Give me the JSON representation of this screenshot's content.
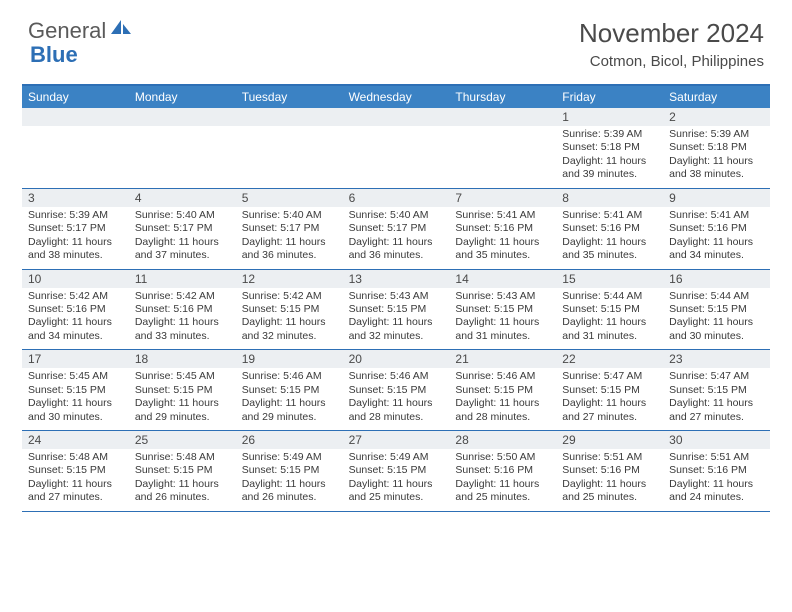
{
  "branding": {
    "word1": "General",
    "word2": "Blue",
    "word1_color": "#5a5a5a",
    "word2_color": "#2d6fb5",
    "icon_fill": "#2d6fb5"
  },
  "title": "November 2024",
  "location": "Cotmon, Bicol, Philippines",
  "colors": {
    "header_bg": "#3b82c4",
    "header_text": "#ffffff",
    "band_bg": "#eceff2",
    "row_border": "#2d6fb5",
    "text": "#333333"
  },
  "weekdays": [
    "Sunday",
    "Monday",
    "Tuesday",
    "Wednesday",
    "Thursday",
    "Friday",
    "Saturday"
  ],
  "weeks": [
    {
      "nums": [
        "",
        "",
        "",
        "",
        "",
        "1",
        "2"
      ],
      "cells": [
        null,
        null,
        null,
        null,
        null,
        {
          "sunrise": "Sunrise: 5:39 AM",
          "sunset": "Sunset: 5:18 PM",
          "daylight": "Daylight: 11 hours and 39 minutes."
        },
        {
          "sunrise": "Sunrise: 5:39 AM",
          "sunset": "Sunset: 5:18 PM",
          "daylight": "Daylight: 11 hours and 38 minutes."
        }
      ]
    },
    {
      "nums": [
        "3",
        "4",
        "5",
        "6",
        "7",
        "8",
        "9"
      ],
      "cells": [
        {
          "sunrise": "Sunrise: 5:39 AM",
          "sunset": "Sunset: 5:17 PM",
          "daylight": "Daylight: 11 hours and 38 minutes."
        },
        {
          "sunrise": "Sunrise: 5:40 AM",
          "sunset": "Sunset: 5:17 PM",
          "daylight": "Daylight: 11 hours and 37 minutes."
        },
        {
          "sunrise": "Sunrise: 5:40 AM",
          "sunset": "Sunset: 5:17 PM",
          "daylight": "Daylight: 11 hours and 36 minutes."
        },
        {
          "sunrise": "Sunrise: 5:40 AM",
          "sunset": "Sunset: 5:17 PM",
          "daylight": "Daylight: 11 hours and 36 minutes."
        },
        {
          "sunrise": "Sunrise: 5:41 AM",
          "sunset": "Sunset: 5:16 PM",
          "daylight": "Daylight: 11 hours and 35 minutes."
        },
        {
          "sunrise": "Sunrise: 5:41 AM",
          "sunset": "Sunset: 5:16 PM",
          "daylight": "Daylight: 11 hours and 35 minutes."
        },
        {
          "sunrise": "Sunrise: 5:41 AM",
          "sunset": "Sunset: 5:16 PM",
          "daylight": "Daylight: 11 hours and 34 minutes."
        }
      ]
    },
    {
      "nums": [
        "10",
        "11",
        "12",
        "13",
        "14",
        "15",
        "16"
      ],
      "cells": [
        {
          "sunrise": "Sunrise: 5:42 AM",
          "sunset": "Sunset: 5:16 PM",
          "daylight": "Daylight: 11 hours and 34 minutes."
        },
        {
          "sunrise": "Sunrise: 5:42 AM",
          "sunset": "Sunset: 5:16 PM",
          "daylight": "Daylight: 11 hours and 33 minutes."
        },
        {
          "sunrise": "Sunrise: 5:42 AM",
          "sunset": "Sunset: 5:15 PM",
          "daylight": "Daylight: 11 hours and 32 minutes."
        },
        {
          "sunrise": "Sunrise: 5:43 AM",
          "sunset": "Sunset: 5:15 PM",
          "daylight": "Daylight: 11 hours and 32 minutes."
        },
        {
          "sunrise": "Sunrise: 5:43 AM",
          "sunset": "Sunset: 5:15 PM",
          "daylight": "Daylight: 11 hours and 31 minutes."
        },
        {
          "sunrise": "Sunrise: 5:44 AM",
          "sunset": "Sunset: 5:15 PM",
          "daylight": "Daylight: 11 hours and 31 minutes."
        },
        {
          "sunrise": "Sunrise: 5:44 AM",
          "sunset": "Sunset: 5:15 PM",
          "daylight": "Daylight: 11 hours and 30 minutes."
        }
      ]
    },
    {
      "nums": [
        "17",
        "18",
        "19",
        "20",
        "21",
        "22",
        "23"
      ],
      "cells": [
        {
          "sunrise": "Sunrise: 5:45 AM",
          "sunset": "Sunset: 5:15 PM",
          "daylight": "Daylight: 11 hours and 30 minutes."
        },
        {
          "sunrise": "Sunrise: 5:45 AM",
          "sunset": "Sunset: 5:15 PM",
          "daylight": "Daylight: 11 hours and 29 minutes."
        },
        {
          "sunrise": "Sunrise: 5:46 AM",
          "sunset": "Sunset: 5:15 PM",
          "daylight": "Daylight: 11 hours and 29 minutes."
        },
        {
          "sunrise": "Sunrise: 5:46 AM",
          "sunset": "Sunset: 5:15 PM",
          "daylight": "Daylight: 11 hours and 28 minutes."
        },
        {
          "sunrise": "Sunrise: 5:46 AM",
          "sunset": "Sunset: 5:15 PM",
          "daylight": "Daylight: 11 hours and 28 minutes."
        },
        {
          "sunrise": "Sunrise: 5:47 AM",
          "sunset": "Sunset: 5:15 PM",
          "daylight": "Daylight: 11 hours and 27 minutes."
        },
        {
          "sunrise": "Sunrise: 5:47 AM",
          "sunset": "Sunset: 5:15 PM",
          "daylight": "Daylight: 11 hours and 27 minutes."
        }
      ]
    },
    {
      "nums": [
        "24",
        "25",
        "26",
        "27",
        "28",
        "29",
        "30"
      ],
      "cells": [
        {
          "sunrise": "Sunrise: 5:48 AM",
          "sunset": "Sunset: 5:15 PM",
          "daylight": "Daylight: 11 hours and 27 minutes."
        },
        {
          "sunrise": "Sunrise: 5:48 AM",
          "sunset": "Sunset: 5:15 PM",
          "daylight": "Daylight: 11 hours and 26 minutes."
        },
        {
          "sunrise": "Sunrise: 5:49 AM",
          "sunset": "Sunset: 5:15 PM",
          "daylight": "Daylight: 11 hours and 26 minutes."
        },
        {
          "sunrise": "Sunrise: 5:49 AM",
          "sunset": "Sunset: 5:15 PM",
          "daylight": "Daylight: 11 hours and 25 minutes."
        },
        {
          "sunrise": "Sunrise: 5:50 AM",
          "sunset": "Sunset: 5:16 PM",
          "daylight": "Daylight: 11 hours and 25 minutes."
        },
        {
          "sunrise": "Sunrise: 5:51 AM",
          "sunset": "Sunset: 5:16 PM",
          "daylight": "Daylight: 11 hours and 25 minutes."
        },
        {
          "sunrise": "Sunrise: 5:51 AM",
          "sunset": "Sunset: 5:16 PM",
          "daylight": "Daylight: 11 hours and 24 minutes."
        }
      ]
    }
  ]
}
